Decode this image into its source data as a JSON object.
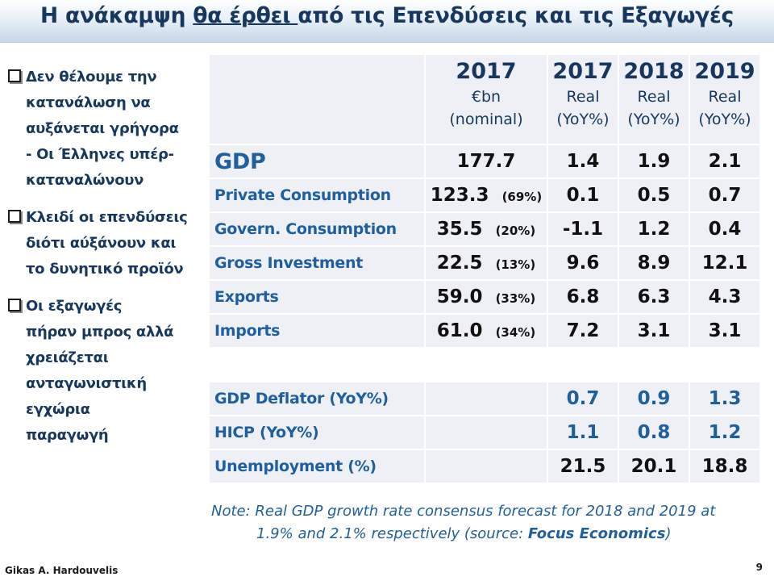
{
  "title": {
    "part1": "Η ανάκαμψη ",
    "underlined": "θα έρθει ",
    "part2": "από τις Επενδύσεις και τις Εξαγωγές"
  },
  "bullets": [
    "Δεν θέλουμε την κατανάλωση να αυξάνεται γρήγορα - Οι Έλληνες υπέρ-καταναλώνουν",
    "Κλειδί οι επενδύσεις διότι αύξάνουν και το δυνητικό προϊόν",
    "Οι εξαγωγές πήραν μπρος αλλά χρειάζεται ανταγωνιστική εγχώρια παραγωγή"
  ],
  "table": {
    "headers": [
      {
        "year": "2017",
        "l1": "€bn",
        "l2": "(nominal)"
      },
      {
        "year": "2017",
        "l1": "Real",
        "l2": "(YoY%)"
      },
      {
        "year": "2018",
        "l1": "Real",
        "l2": "(YoY%)"
      },
      {
        "year": "2019",
        "l1": "Real",
        "l2": "(YoY%)"
      }
    ],
    "gdp": {
      "label": "GDP",
      "nominal": "177.7",
      "v2017": "1.4",
      "v2018": "1.9",
      "v2019": "2.1"
    },
    "rows": [
      {
        "label": "Private Consumption",
        "nominal": "123.3",
        "share": "(69%)",
        "v2017": "0.1",
        "v2018": "0.5",
        "v2019": "0.7"
      },
      {
        "label": "Govern. Consumption",
        "nominal": "35.5",
        "share": "(20%)",
        "v2017": "-1.1",
        "v2018": "1.2",
        "v2019": "0.4"
      },
      {
        "label": "Gross Investment",
        "nominal": "22.5",
        "share": "(13%)",
        "v2017": "9.6",
        "v2018": "8.9",
        "v2019": "12.1"
      },
      {
        "label": "Exports",
        "nominal": "59.0",
        "share": "(33%)",
        "v2017": "6.8",
        "v2018": "6.3",
        "v2019": "4.3"
      },
      {
        "label": "Imports",
        "nominal": "61.0",
        "share": "(34%)",
        "v2017": "7.2",
        "v2018": "3.1",
        "v2019": "3.1"
      }
    ],
    "bottom": [
      {
        "label": "GDP Deflator (YoY%)",
        "v2017": "0.7",
        "v2018": "0.9",
        "v2019": "1.3"
      },
      {
        "label": "HICP (YoY%)",
        "v2017": "1.1",
        "v2018": "0.8",
        "v2019": "1.2"
      },
      {
        "label": "Unemployment (%)",
        "v2017": "21.5",
        "v2018": "20.1",
        "v2019": "18.8"
      }
    ]
  },
  "note": {
    "line1": "Note:  Real GDP growth rate consensus forecast for 2018 and 2019 at",
    "line2": "1.9% and 2.1% respectively (source: ",
    "source": "Focus Economics",
    "close": ")"
  },
  "footer": {
    "author": "Gikas A. Hardouvelis",
    "page": "9"
  }
}
